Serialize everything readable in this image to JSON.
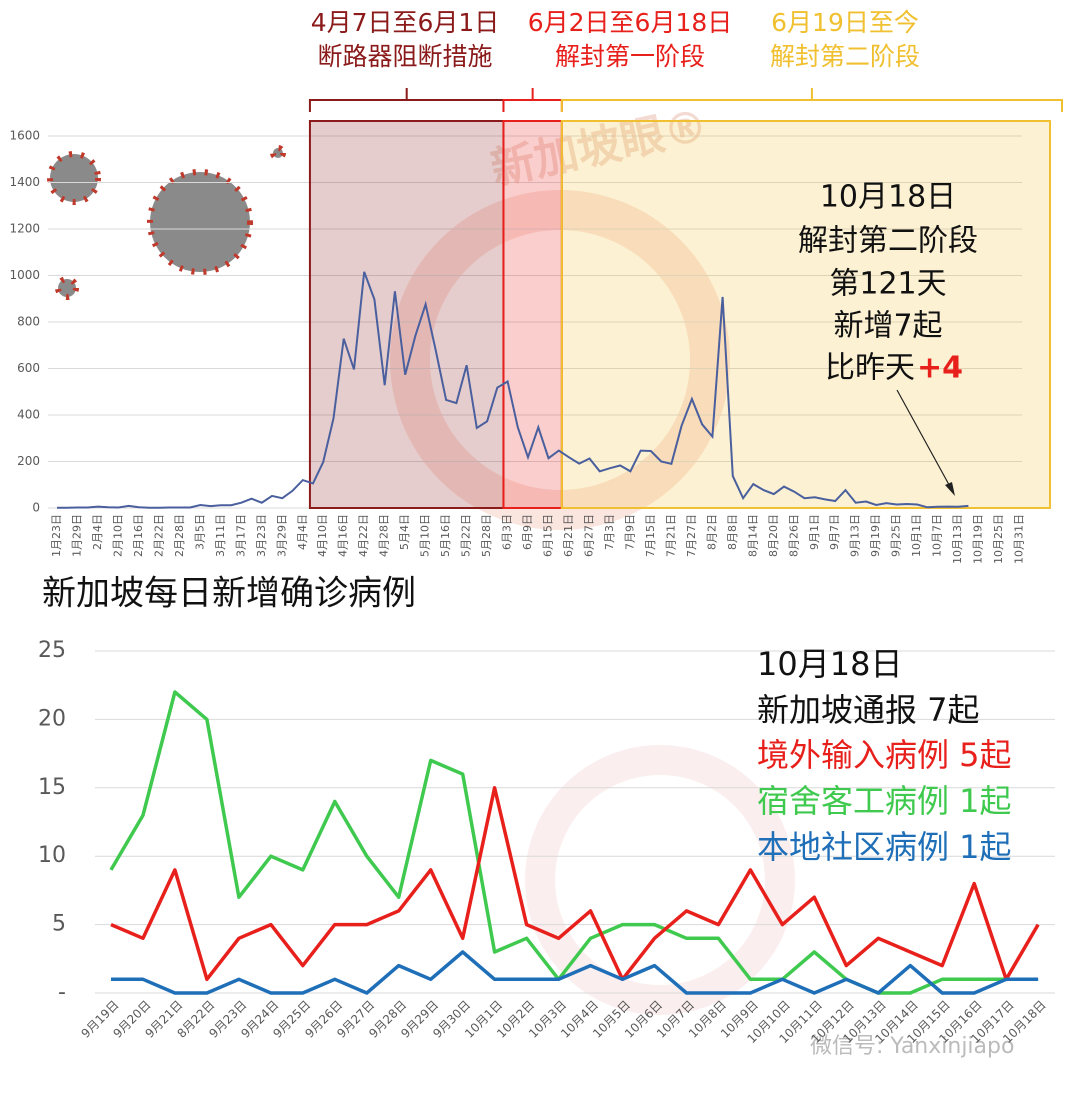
{
  "chart_data": [
    {
      "type": "line",
      "categories": [
        "1月23日",
        null,
        "1月29日",
        null,
        "2月4日",
        null,
        "2月10日",
        null,
        "2月16日",
        null,
        "2月22日",
        null,
        "2月28日",
        null,
        "3月5日",
        null,
        "3月11日",
        null,
        "3月17日",
        null,
        "3月23日",
        null,
        "3月29日",
        null,
        "4月4日",
        null,
        "4月10日",
        null,
        "4月16日",
        null,
        "4月22日",
        null,
        "4月28日",
        null,
        "5月4日",
        null,
        "5月10日",
        null,
        "5月16日",
        null,
        "5月22日",
        null,
        "5月28日",
        null,
        "6月3日",
        null,
        "6月9日",
        null,
        "6月15日",
        null,
        "6月21日",
        null,
        "6月27日",
        null,
        "7月3日",
        null,
        "7月9日",
        null,
        "7月15日",
        null,
        "7月21日",
        null,
        "7月27日",
        null,
        "8月2日",
        null,
        "8月8日",
        null,
        "8月14日",
        null,
        "8月20日",
        null,
        "8月26日",
        null,
        "9月1日",
        null,
        "9月7日",
        null,
        "9月13日",
        null,
        "9月19日",
        null,
        "9月25日",
        null,
        "10月1日",
        null,
        "10月7日",
        null,
        "10月13日",
        null,
        "10月19日",
        null,
        "10月25日",
        null,
        "10月31日"
      ],
      "values": [
        1,
        1,
        2,
        2,
        6,
        3,
        2,
        9,
        3,
        1,
        1,
        2,
        2,
        2,
        13,
        8,
        12,
        12,
        23,
        40,
        23,
        52,
        42,
        74,
        120,
        106,
        198,
        386,
        728,
        596,
        1016,
        897,
        528,
        932,
        573,
        741,
        876,
        675,
        465,
        451,
        614,
        344,
        373,
        518,
        544,
        347,
        218,
        347,
        214,
        247,
        218,
        191,
        213,
        158,
        171,
        183,
        158,
        247,
        245,
        200,
        190,
        354,
        469,
        360,
        307,
        908,
        137,
        42,
        103,
        77,
        60,
        92,
        70,
        42,
        46,
        37,
        30,
        77,
        23,
        28,
        13,
        21,
        15,
        17,
        15,
        3,
        5,
        6,
        5,
        9,
        null,
        null,
        null,
        null,
        null
      ],
      "color": "#4a5f9e",
      "ylim": [
        0,
        1600
      ],
      "yticks": [
        0,
        200,
        400,
        600,
        800,
        1000,
        1200,
        1400,
        1600
      ],
      "grid": true,
      "phases": [
        {
          "dates": "4月7日至6月1日",
          "name": "断路器阻断措施",
          "color": "#8b1a1a"
        },
        {
          "dates": "6月2日至6月18日",
          "name": "解封第一阶段",
          "color": "#e8201c"
        },
        {
          "dates": "6月19日至今",
          "name": "解封第二阶段",
          "color": "#f0c030"
        }
      ],
      "annotation": [
        "10月18日",
        "解封第二阶段",
        "第121天",
        "新增7起",
        "比昨天"
      ],
      "annotation_change": "+4",
      "watermark": "新加坡眼®"
    },
    {
      "type": "line",
      "title": "新加坡每日新增确诊病例",
      "categories": [
        "9月19日",
        "9月20日",
        "9月21日",
        "8月22日",
        "9月23日",
        "9月24日",
        "9月25日",
        "9月26日",
        "9月27日",
        "9月28日",
        "9月29日",
        "9月30日",
        "10月1日",
        "10月2日",
        "10月3日",
        "10月4日",
        "10月5日",
        "10月6日",
        "10月7日",
        "10月8日",
        "10月9日",
        "10月10日",
        "10月11日",
        "10月12日",
        "10月13日",
        "10月14日",
        "10月15日",
        "10月16日",
        "10月17日",
        "10月18日"
      ],
      "series": [
        {
          "name": "宿舍客工病例 1起",
          "color": "#3fc94f",
          "values": [
            9,
            13,
            22,
            20,
            7,
            10,
            9,
            14,
            10,
            7,
            17,
            16,
            3,
            4,
            1,
            4,
            5,
            5,
            4,
            4,
            1,
            1,
            3,
            1,
            0,
            0,
            1,
            1,
            1,
            1
          ]
        },
        {
          "name": "境外输入病例 5起",
          "color": "#e8201c",
          "values": [
            5,
            4,
            9,
            1,
            4,
            5,
            2,
            5,
            5,
            6,
            9,
            4,
            15,
            5,
            4,
            6,
            1,
            4,
            6,
            5,
            9,
            5,
            7,
            2,
            4,
            3,
            2,
            8,
            1,
            5
          ]
        },
        {
          "name": "本地社区病例 1起",
          "color": "#1f6fb8",
          "values": [
            1,
            1,
            0,
            0,
            1,
            0,
            0,
            1,
            0,
            2,
            1,
            3,
            1,
            1,
            1,
            2,
            1,
            2,
            0,
            0,
            0,
            1,
            0,
            1,
            0,
            2,
            0,
            0,
            1,
            1
          ]
        }
      ],
      "legend_heading": [
        "10月18日",
        "新加坡通报 7起"
      ],
      "legend_order": [
        1,
        0,
        2
      ],
      "ylim": [
        0,
        25
      ],
      "yticks": [
        {
          "value": 0,
          "label": "-"
        },
        5,
        10,
        15,
        20,
        25
      ],
      "grid": true,
      "watermark": "微信号: Yanxinjiapo"
    }
  ]
}
